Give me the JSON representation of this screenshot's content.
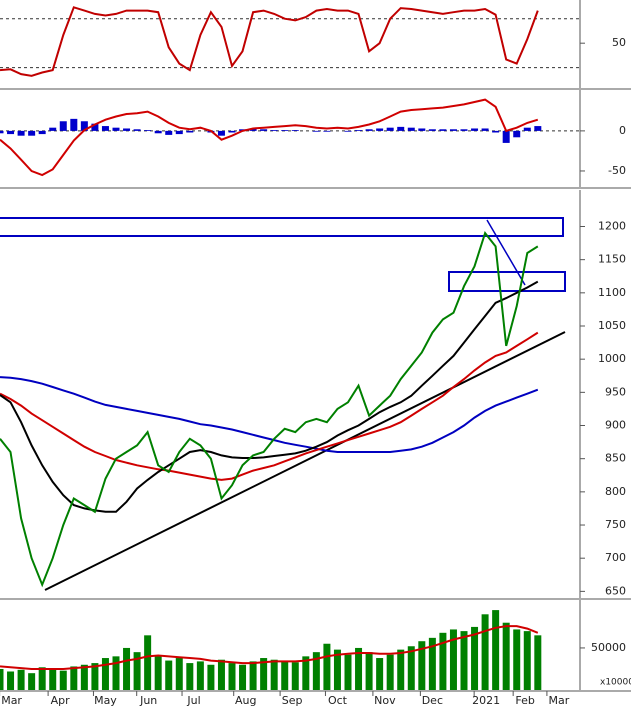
{
  "chart_data": [
    {
      "type": "line",
      "xlim": [
        0,
        55
      ],
      "ylim": [
        -5,
        103
      ],
      "yticks": [
        50
      ],
      "hlines": [
        20,
        80
      ],
      "x": [
        0,
        1,
        2,
        3,
        4,
        5,
        6,
        7,
        8,
        9,
        10,
        11,
        12,
        13,
        14,
        15,
        16,
        17,
        18,
        19,
        20,
        21,
        22,
        23,
        24,
        25,
        26,
        27,
        28,
        29,
        30,
        31,
        32,
        33,
        34,
        35,
        36,
        37,
        38,
        39,
        40,
        41,
        42,
        43,
        44,
        45,
        46,
        47,
        48,
        49,
        50,
        51
      ],
      "series": [
        {
          "type": "line",
          "color": "#c00000",
          "values": [
            17,
            18,
            12,
            10,
            14,
            17,
            60,
            94,
            90,
            86,
            84,
            86,
            90,
            90,
            90,
            88,
            45,
            25,
            17,
            60,
            88,
            70,
            22,
            40,
            88,
            90,
            86,
            80,
            78,
            82,
            90,
            92,
            90,
            90,
            86,
            40,
            50,
            80,
            93,
            92,
            90,
            88,
            86,
            88,
            90,
            90,
            92,
            85,
            30,
            25,
            55,
            90
          ]
        }
      ]
    },
    {
      "type": "line",
      "xlim": [
        0,
        55
      ],
      "ylim": [
        -70,
        51
      ],
      "yticks": [
        0,
        -50
      ],
      "hlines": [
        0
      ],
      "x": [
        0,
        1,
        2,
        3,
        4,
        5,
        6,
        7,
        8,
        9,
        10,
        11,
        12,
        13,
        14,
        15,
        16,
        17,
        18,
        19,
        20,
        21,
        22,
        23,
        24,
        25,
        26,
        27,
        28,
        29,
        30,
        31,
        32,
        33,
        34,
        35,
        36,
        37,
        38,
        39,
        40,
        41,
        42,
        43,
        44,
        45,
        46,
        47,
        48,
        49,
        50,
        51
      ],
      "series": [
        {
          "type": "bar",
          "color": "#0000cc",
          "values": [
            -3,
            -4,
            -6,
            -6,
            -4,
            4,
            12,
            15,
            12,
            9,
            6,
            4,
            3,
            2,
            1,
            -3,
            -5,
            -4,
            -2,
            0,
            -2,
            -6,
            -2,
            2,
            3,
            2,
            1,
            1,
            1,
            0,
            -1,
            -1,
            0,
            -1,
            1,
            2,
            3,
            4,
            5,
            4,
            3,
            2,
            2,
            2,
            2,
            3,
            3,
            -2,
            -15,
            -8,
            4,
            6
          ]
        },
        {
          "type": "line",
          "color": "#d00000",
          "values": [
            -11,
            -22,
            -36,
            -50,
            -55,
            -48,
            -30,
            -12,
            1,
            8,
            14,
            18,
            21,
            22,
            24,
            18,
            10,
            4,
            2,
            4,
            0,
            -11,
            -6,
            0,
            3,
            4,
            5,
            6,
            7,
            6,
            4,
            3,
            4,
            3,
            5,
            8,
            12,
            18,
            24,
            26,
            27,
            28,
            29,
            31,
            33,
            36,
            39,
            30,
            0,
            4,
            10,
            14
          ]
        }
      ]
    },
    {
      "type": "line",
      "xlim": [
        0,
        55
      ],
      "ylim": [
        640,
        1255
      ],
      "yticks": [
        650,
        700,
        750,
        800,
        850,
        900,
        950,
        1000,
        1050,
        1100,
        1150,
        1200
      ],
      "x": [
        0,
        1,
        2,
        3,
        4,
        5,
        6,
        7,
        8,
        9,
        10,
        11,
        12,
        13,
        14,
        15,
        16,
        17,
        18,
        19,
        20,
        21,
        22,
        23,
        24,
        25,
        26,
        27,
        28,
        29,
        30,
        31,
        32,
        33,
        34,
        35,
        36,
        37,
        38,
        39,
        40,
        41,
        42,
        43,
        44,
        45,
        46,
        47,
        48,
        49,
        50,
        51
      ],
      "series": [
        {
          "type": "line",
          "color": "#0000c0",
          "values": [
            973,
            972,
            970,
            967,
            963,
            958,
            953,
            948,
            942,
            936,
            931,
            928,
            925,
            922,
            919,
            916,
            913,
            910,
            906,
            902,
            900,
            897,
            894,
            890,
            886,
            882,
            878,
            874,
            871,
            868,
            865,
            862,
            860,
            860,
            860,
            860,
            860,
            860,
            862,
            864,
            868,
            874,
            882,
            890,
            900,
            912,
            922,
            930,
            936,
            942,
            948,
            954
          ]
        },
        {
          "type": "line",
          "color": "#d00000",
          "values": [
            948,
            940,
            930,
            918,
            908,
            898,
            888,
            878,
            868,
            860,
            854,
            848,
            844,
            840,
            837,
            834,
            832,
            829,
            826,
            823,
            820,
            818,
            820,
            826,
            832,
            836,
            840,
            846,
            852,
            858,
            863,
            868,
            873,
            878,
            883,
            888,
            893,
            898,
            905,
            915,
            925,
            935,
            945,
            958,
            970,
            983,
            995,
            1005,
            1010,
            1020,
            1030,
            1040
          ]
        },
        {
          "type": "line",
          "color": "#000000",
          "values": [
            946,
            935,
            905,
            870,
            840,
            815,
            795,
            780,
            775,
            772,
            770,
            770,
            785,
            805,
            818,
            830,
            840,
            850,
            860,
            863,
            860,
            855,
            852,
            851,
            851,
            852,
            854,
            856,
            858,
            862,
            868,
            875,
            885,
            893,
            900,
            910,
            920,
            928,
            935,
            945,
            960,
            975,
            990,
            1005,
            1025,
            1045,
            1065,
            1085,
            1092,
            1100,
            1108,
            1117
          ]
        },
        {
          "type": "line",
          "color": "#008000",
          "values": [
            880,
            860,
            760,
            700,
            660,
            700,
            750,
            790,
            780,
            770,
            820,
            850,
            860,
            870,
            890,
            840,
            830,
            860,
            880,
            870,
            850,
            790,
            810,
            840,
            855,
            860,
            880,
            895,
            890,
            905,
            910,
            905,
            925,
            935,
            960,
            915,
            930,
            945,
            970,
            990,
            1010,
            1040,
            1060,
            1070,
            1110,
            1140,
            1190,
            1170,
            1020,
            1080,
            1160,
            1170
          ]
        }
      ]
    },
    {
      "type": "bar",
      "xlim": [
        0,
        55
      ],
      "ylim": [
        0,
        107000
      ],
      "yticks": [
        50000
      ],
      "y_unit_label": "x10000",
      "xticks": [
        {
          "value": 1.1,
          "label": "Mar"
        },
        {
          "value": 5.7,
          "label": "Apr"
        },
        {
          "value": 10,
          "label": "May"
        },
        {
          "value": 14.1,
          "label": "Jun"
        },
        {
          "value": 18.4,
          "label": "Jul"
        },
        {
          "value": 23.3,
          "label": "Aug"
        },
        {
          "value": 27.7,
          "label": "Sep"
        },
        {
          "value": 32,
          "label": "Oct"
        },
        {
          "value": 36.5,
          "label": "Nov"
        },
        {
          "value": 41,
          "label": "Dec"
        },
        {
          "value": 46.1,
          "label": "2021"
        },
        {
          "value": 49.8,
          "label": "Feb"
        },
        {
          "value": 53,
          "label": "Mar"
        }
      ],
      "x": [
        0,
        1,
        2,
        3,
        4,
        5,
        6,
        7,
        8,
        9,
        10,
        11,
        12,
        13,
        14,
        15,
        16,
        17,
        18,
        19,
        20,
        21,
        22,
        23,
        24,
        25,
        26,
        27,
        28,
        29,
        30,
        31,
        32,
        33,
        34,
        35,
        36,
        37,
        38,
        39,
        40,
        41,
        42,
        43,
        44,
        45,
        46,
        47,
        48,
        49,
        50,
        51
      ],
      "series": [
        {
          "type": "bar",
          "color": "#008000",
          "values": [
            25000,
            22000,
            24000,
            20000,
            27000,
            24000,
            23000,
            28000,
            30000,
            32000,
            38000,
            40000,
            50000,
            45000,
            65000,
            40000,
            35000,
            38000,
            32000,
            34000,
            30000,
            36000,
            32000,
            30000,
            34000,
            38000,
            36000,
            34000,
            33000,
            40000,
            45000,
            55000,
            48000,
            42000,
            50000,
            45000,
            38000,
            42000,
            48000,
            52000,
            58000,
            62000,
            68000,
            72000,
            70000,
            75000,
            90000,
            95000,
            80000,
            72000,
            70000,
            65000
          ]
        },
        {
          "type": "line",
          "color": "#d00000",
          "values": [
            28000,
            27000,
            26000,
            25000,
            25000,
            25000,
            25000,
            26000,
            27000,
            28000,
            30000,
            32000,
            35000,
            37000,
            40000,
            41000,
            40000,
            39000,
            38000,
            37000,
            35000,
            34000,
            33000,
            32000,
            32000,
            33000,
            34000,
            34000,
            34000,
            35000,
            37000,
            40000,
            42000,
            43000,
            44000,
            44000,
            43000,
            43000,
            44000,
            46000,
            49000,
            52000,
            56000,
            60000,
            63000,
            66000,
            70000,
            74000,
            76000,
            76000,
            73000,
            68000
          ]
        }
      ]
    }
  ]
}
